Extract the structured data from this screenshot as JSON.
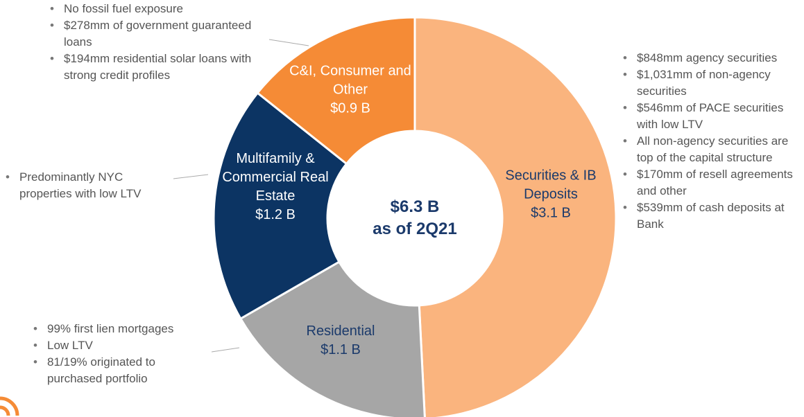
{
  "chart_data": {
    "type": "donut",
    "categories": [
      "Securities & IB Deposits",
      "Residential",
      "Multifamily & Commercial Real Estate",
      "C&I, Consumer and Other"
    ],
    "values": [
      3.1,
      1.1,
      1.2,
      0.9
    ],
    "value_labels": [
      "$3.1 B",
      "$1.1 B",
      "$1.2 B",
      "$0.9 B"
    ],
    "colors": [
      "#fab47e",
      "#a6a6a6",
      "#0c3463",
      "#f58b36"
    ],
    "center_text": [
      "$6.3 B",
      "as of 2Q21"
    ],
    "annotations": [
      [
        "$848mm agency securities",
        "$1,031mm of non-agency securities",
        "$546mm of PACE securities with low LTV",
        "All non-agency securities are top of the capital structure",
        "$170mm of resell agreements and other",
        "$539mm of cash deposits at Bank"
      ],
      [
        "99% first lien mortgages",
        "Low LTV",
        "81/19% originated to purchased portfolio"
      ],
      [
        "Predominantly NYC properties with low LTV"
      ],
      [
        "No fossil fuel exposure",
        "$278mm of government guaranteed loans",
        "$194mm residential solar loans with strong credit profiles"
      ]
    ]
  }
}
